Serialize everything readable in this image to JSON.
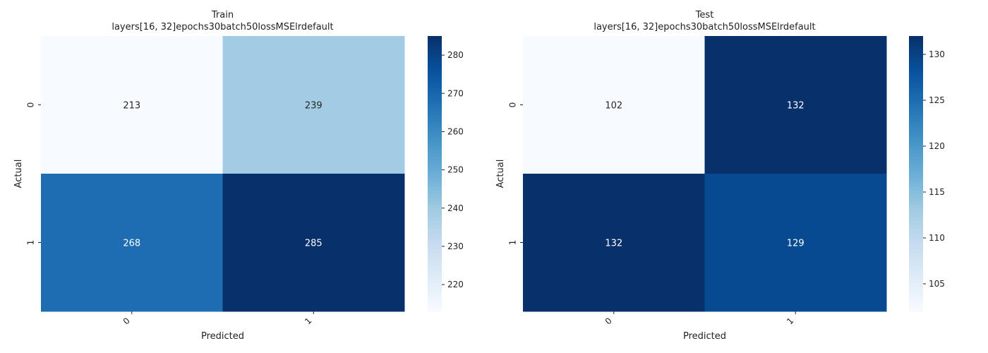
{
  "chart_data": [
    {
      "type": "heatmap",
      "title": "Train",
      "subtitle": "layers[16, 32]epochs30batch50lossMSElrdefault",
      "xlabel": "Predicted",
      "ylabel": "Actual",
      "x_categories": [
        "0",
        "1"
      ],
      "y_categories": [
        "0",
        "1"
      ],
      "values": [
        [
          213,
          239
        ],
        [
          268,
          285
        ]
      ],
      "colormap": "Blues",
      "colorbar": {
        "min": 213,
        "max": 285,
        "ticks": [
          220,
          230,
          240,
          250,
          260,
          270,
          280
        ]
      }
    },
    {
      "type": "heatmap",
      "title": "Test",
      "subtitle": "layers[16, 32]epochs30batch50lossMSElrdefault",
      "xlabel": "Predicted",
      "ylabel": "Actual",
      "x_categories": [
        "0",
        "1"
      ],
      "y_categories": [
        "0",
        "1"
      ],
      "values": [
        [
          102,
          132
        ],
        [
          132,
          129
        ]
      ],
      "colormap": "Blues",
      "colorbar": {
        "min": 102,
        "max": 132,
        "ticks": [
          105,
          110,
          115,
          120,
          125,
          130
        ]
      }
    }
  ]
}
